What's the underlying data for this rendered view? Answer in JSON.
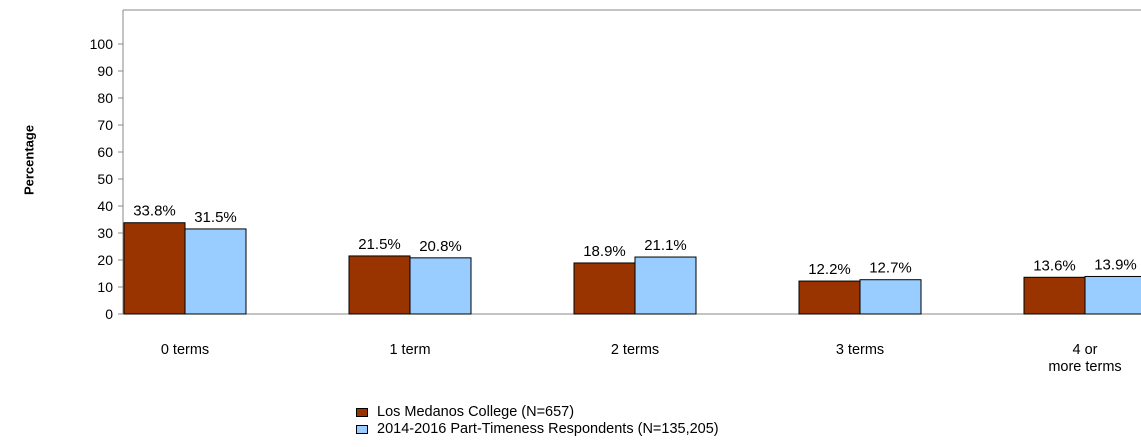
{
  "chart_data": {
    "type": "bar",
    "categories": [
      "0 terms",
      "1 term",
      "2 terms",
      "3 terms",
      "4 or\nmore terms"
    ],
    "series": [
      {
        "name": "Los Medanos College (N=657)",
        "values": [
          33.8,
          21.5,
          18.9,
          12.2,
          13.6
        ],
        "color": "#993300"
      },
      {
        "name": "2014-2016 Part-Timeness Respondents (N=135,205)",
        "values": [
          31.5,
          20.8,
          21.1,
          12.7,
          13.9
        ],
        "color": "#99ccff"
      }
    ],
    "data_labels": [
      [
        "33.8%",
        "21.5%",
        "18.9%",
        "12.2%",
        "13.6%"
      ],
      [
        "31.5%",
        "20.8%",
        "21.1%",
        "12.7%",
        "13.9%"
      ]
    ],
    "ylabel": "Percentage",
    "xlabel": "",
    "ylim": [
      0,
      110
    ],
    "yticks": [
      0,
      10,
      20,
      30,
      40,
      50,
      60,
      70,
      80,
      90,
      100
    ],
    "grid": false,
    "legend_position": "bottom"
  }
}
